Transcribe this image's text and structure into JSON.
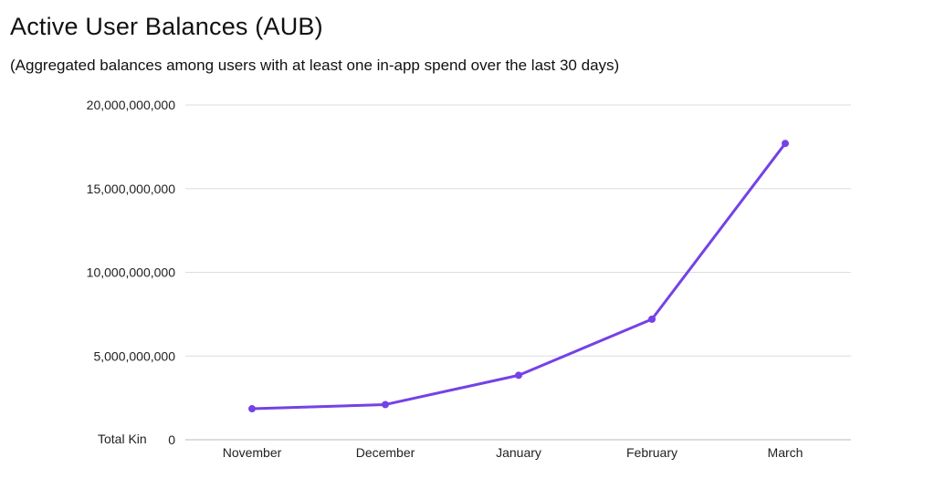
{
  "chart_data": {
    "type": "line",
    "title": "Active User Balances (AUB)",
    "subtitle": "(Aggregated balances among users with at least one in-app spend over the last 30 days)",
    "ylabel": "Total Kin",
    "xlabel": "",
    "categories": [
      "November",
      "December",
      "January",
      "February",
      "March"
    ],
    "series": [
      {
        "values": [
          1850000000,
          2100000000,
          3850000000,
          7200000000,
          17700000000
        ]
      }
    ],
    "ylim": [
      0,
      20000000000
    ],
    "yticks": [
      0,
      5000000000,
      10000000000,
      15000000000,
      20000000000
    ],
    "ytick_labels": [
      "0",
      "5,000,000,000",
      "10,000,000,000",
      "15,000,000,000",
      "20,000,000,000"
    ],
    "grid": true,
    "colors": {
      "line": "#7442e6",
      "grid": "#dddddd",
      "axis": "#bbbbbb"
    }
  }
}
